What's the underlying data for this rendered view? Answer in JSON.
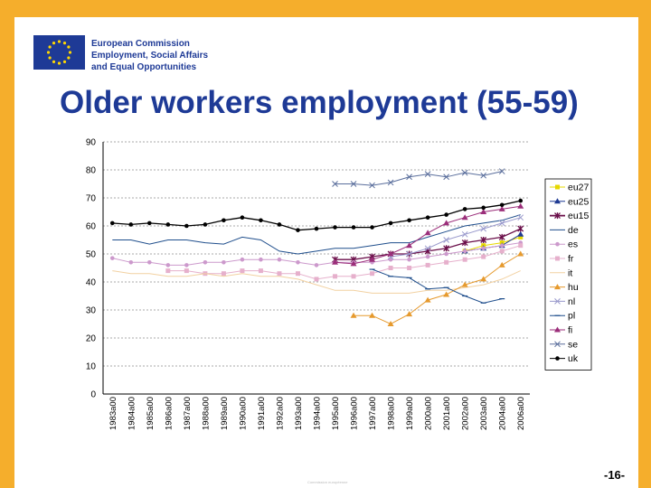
{
  "header": {
    "org_lines": [
      "European Commission",
      "Employment, Social Affairs",
      "and Equal Opportunities"
    ],
    "brand_color": "#1E3A96"
  },
  "slide": {
    "title": "Older workers employment (55-59)",
    "page_number": "-16-",
    "footer_note": "Commission européenne",
    "border_color": "#F5AE2C"
  },
  "chart_data": {
    "type": "line",
    "title": "",
    "xlabel": "",
    "ylabel": "",
    "ylim": [
      0,
      90
    ],
    "yticks": [
      0,
      10,
      20,
      30,
      40,
      50,
      60,
      70,
      80,
      90
    ],
    "grid": true,
    "legend_position": "right",
    "categories": [
      "1983a00",
      "1984a00",
      "1985a00",
      "1986a00",
      "1987a00",
      "1988a00",
      "1989a00",
      "1990a00",
      "1991a00",
      "1992a00",
      "1993a00",
      "1994a00",
      "1995a00",
      "1996a00",
      "1997a00",
      "1998a00",
      "1999a00",
      "2000a00",
      "2001a00",
      "2002a00",
      "2003a00",
      "2004a00",
      "2006a00"
    ],
    "series": [
      {
        "name": "eu27",
        "color": "#E6D800",
        "marker": "square",
        "values": [
          null,
          null,
          null,
          null,
          null,
          null,
          null,
          null,
          null,
          null,
          null,
          null,
          null,
          null,
          null,
          null,
          null,
          null,
          null,
          51,
          53,
          54,
          56
        ]
      },
      {
        "name": "eu25",
        "color": "#1F3A93",
        "marker": "triangle",
        "values": [
          null,
          null,
          null,
          null,
          null,
          null,
          null,
          null,
          null,
          null,
          null,
          null,
          null,
          null,
          null,
          null,
          null,
          null,
          null,
          51,
          52,
          53,
          57
        ]
      },
      {
        "name": "eu15",
        "color": "#6B0F4A",
        "marker": "star",
        "values": [
          null,
          null,
          null,
          null,
          null,
          null,
          null,
          null,
          null,
          null,
          null,
          null,
          48,
          48,
          49,
          50,
          50,
          51,
          52,
          54,
          55,
          56,
          59
        ]
      },
      {
        "name": "de",
        "color": "#1F4E8C",
        "marker": "none",
        "values": [
          55,
          55,
          53.5,
          55,
          55,
          54,
          53.5,
          56,
          55,
          51,
          50,
          51,
          52,
          52,
          53,
          54,
          54,
          56,
          58,
          60,
          61,
          62,
          64
        ]
      },
      {
        "name": "es",
        "color": "#CC99CC",
        "marker": "circle",
        "values": [
          48.5,
          47,
          47,
          46,
          46,
          47,
          47,
          48,
          48,
          48,
          47,
          46,
          47,
          47,
          47,
          48,
          48,
          49,
          50,
          51,
          52,
          53,
          54
        ]
      },
      {
        "name": "fr",
        "color": "#E6B0CC",
        "marker": "square",
        "values": [
          null,
          null,
          null,
          44,
          44,
          43,
          43,
          44,
          44,
          43,
          43,
          41,
          42,
          42,
          43,
          45,
          45,
          46,
          47,
          48,
          49,
          51,
          53
        ]
      },
      {
        "name": "it",
        "color": "#F2D1A1",
        "marker": "none",
        "values": [
          44,
          43,
          43,
          42,
          42,
          43,
          42,
          43,
          42,
          42,
          41,
          39,
          37,
          37,
          36,
          36,
          36,
          37,
          37,
          38,
          39,
          41,
          44
        ]
      },
      {
        "name": "hu",
        "color": "#E69A2E",
        "marker": "triangle",
        "values": [
          null,
          null,
          null,
          null,
          null,
          null,
          null,
          null,
          null,
          null,
          null,
          null,
          null,
          28,
          28,
          25,
          28.5,
          33.5,
          35.5,
          39,
          41,
          46,
          50
        ]
      },
      {
        "name": "nl",
        "color": "#9999CC",
        "marker": "x",
        "values": [
          null,
          null,
          null,
          null,
          null,
          null,
          null,
          null,
          null,
          null,
          null,
          null,
          null,
          null,
          null,
          49,
          50,
          52,
          55,
          57,
          59,
          61,
          63
        ]
      },
      {
        "name": "pl",
        "color": "#1F4E8C",
        "marker": "dash",
        "values": [
          null,
          null,
          null,
          null,
          null,
          null,
          null,
          null,
          null,
          null,
          null,
          null,
          null,
          null,
          44.5,
          42,
          41.5,
          37.5,
          38,
          35,
          32.5,
          34,
          null
        ]
      },
      {
        "name": "fi",
        "color": "#9B2E7A",
        "marker": "triangle",
        "values": [
          null,
          null,
          null,
          null,
          null,
          null,
          null,
          null,
          null,
          null,
          null,
          null,
          47,
          46.5,
          48,
          50,
          53,
          57.5,
          61,
          63,
          65,
          66,
          67
        ]
      },
      {
        "name": "se",
        "color": "#5A6E9C",
        "marker": "x",
        "values": [
          null,
          null,
          null,
          null,
          null,
          null,
          null,
          null,
          null,
          null,
          null,
          null,
          75,
          75,
          74.5,
          75.5,
          77.5,
          78.5,
          77.5,
          79,
          78,
          79.5,
          null
        ]
      },
      {
        "name": "uk",
        "color": "#000000",
        "marker": "circle",
        "values": [
          61,
          60.5,
          61,
          60.5,
          60,
          60.5,
          62,
          63,
          62,
          60.5,
          58.5,
          59,
          59.5,
          59.5,
          59.5,
          61,
          62,
          63,
          64,
          66,
          66.5,
          67.5,
          69
        ]
      }
    ]
  }
}
